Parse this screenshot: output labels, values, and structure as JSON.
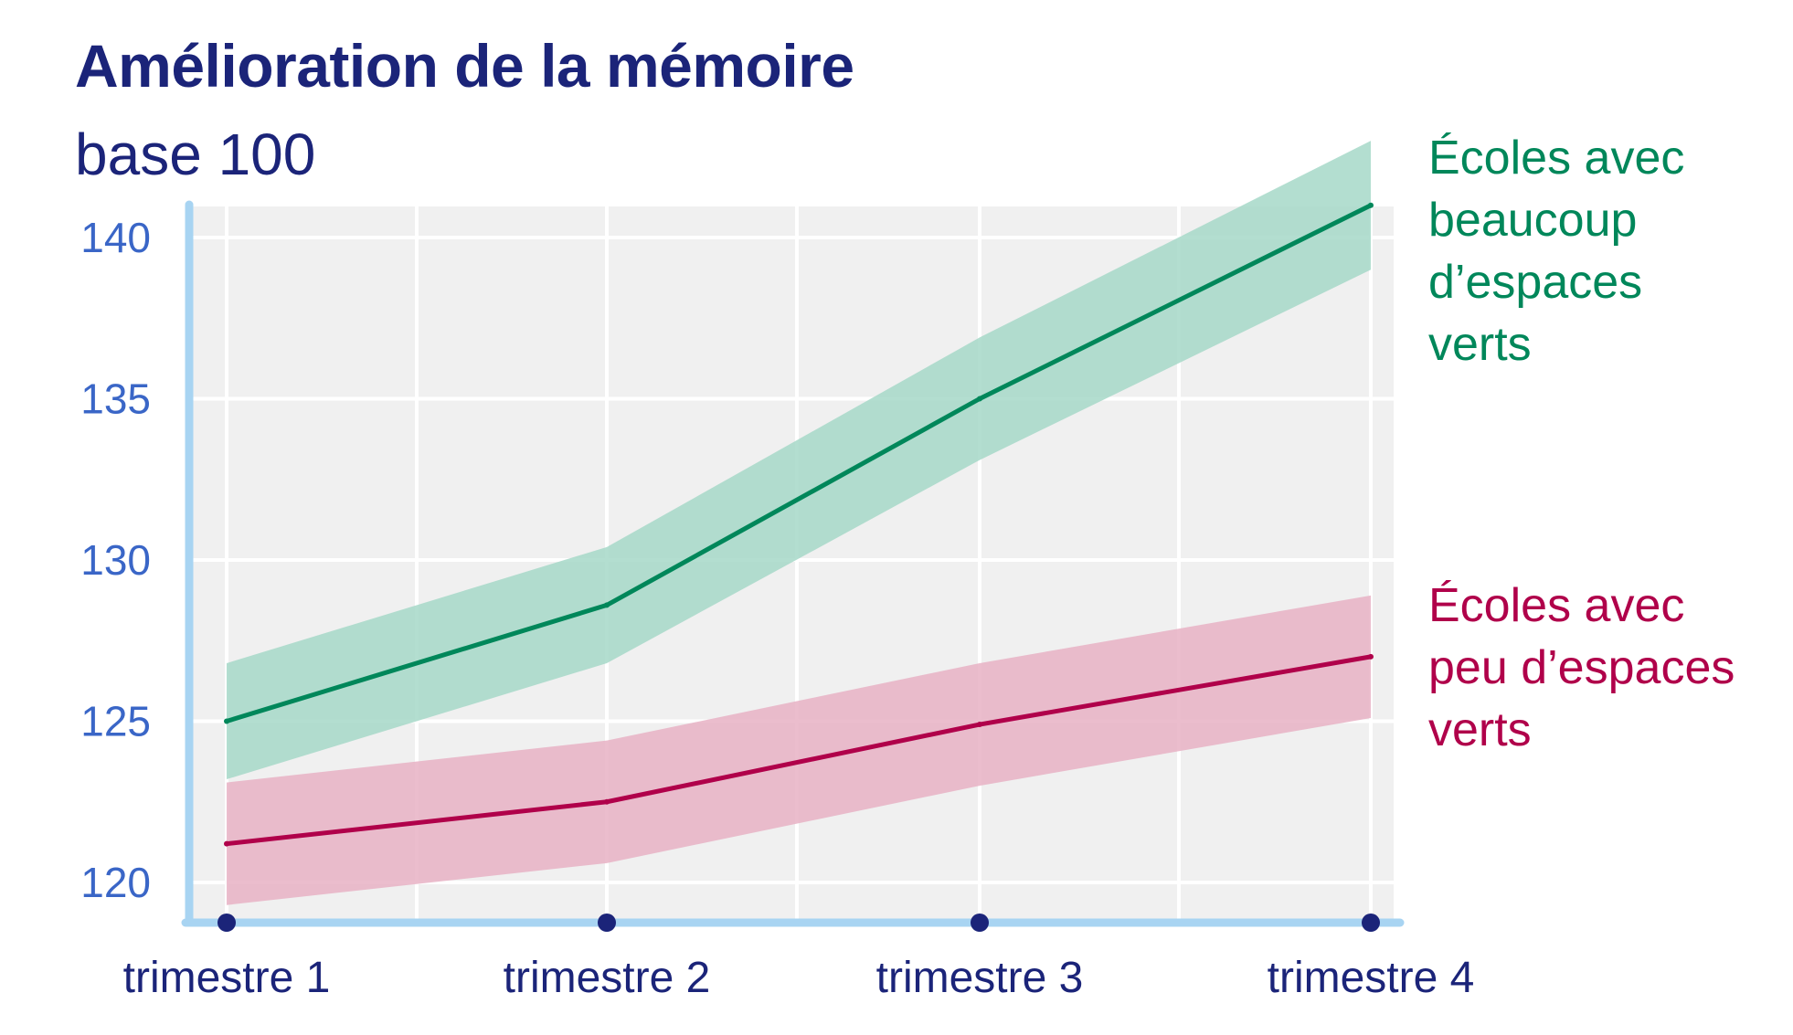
{
  "title": "Amélioration de la mémoire",
  "subtitle": "base 100",
  "colors": {
    "green_line": "#00875a",
    "green_band": "#a6d8c8",
    "pink_line": "#b0004a",
    "pink_band": "#e7b1c4",
    "axis": "#a8d4f2",
    "grid_bg": "#f0f0f0",
    "ytick": "#3a66c7",
    "navy": "#1b2479"
  },
  "chart_data": {
    "type": "line",
    "title": "Amélioration de la mémoire",
    "subtitle": "base 100",
    "categories": [
      "trimestre 1",
      "trimestre 2",
      "trimestre 3",
      "trimestre 4"
    ],
    "yticks": [
      120,
      125,
      130,
      135,
      140
    ],
    "ylim": [
      118.7,
      141.5
    ],
    "grid": true,
    "series": [
      {
        "name": "Écoles avec beaucoup d’espaces verts",
        "label_lines": [
          "Écoles avec",
          "beaucoup",
          "d’espaces",
          "verts"
        ],
        "values": [
          125.0,
          128.6,
          135.0,
          141.0
        ],
        "upper": [
          126.8,
          130.4,
          136.9,
          143.0
        ],
        "lower": [
          123.2,
          126.8,
          133.1,
          139.0
        ],
        "color": "#00875a",
        "band_color": "#a6d8c8"
      },
      {
        "name": "Écoles avec peu d’espaces verts",
        "label_lines": [
          "Écoles avec",
          "peu d’espaces",
          "verts"
        ],
        "values": [
          121.2,
          122.5,
          124.9,
          127.0
        ],
        "upper": [
          123.1,
          124.4,
          126.8,
          128.9
        ],
        "lower": [
          119.3,
          120.6,
          123.0,
          125.1
        ],
        "color": "#b0004a",
        "band_color": "#e7b1c4"
      }
    ]
  }
}
